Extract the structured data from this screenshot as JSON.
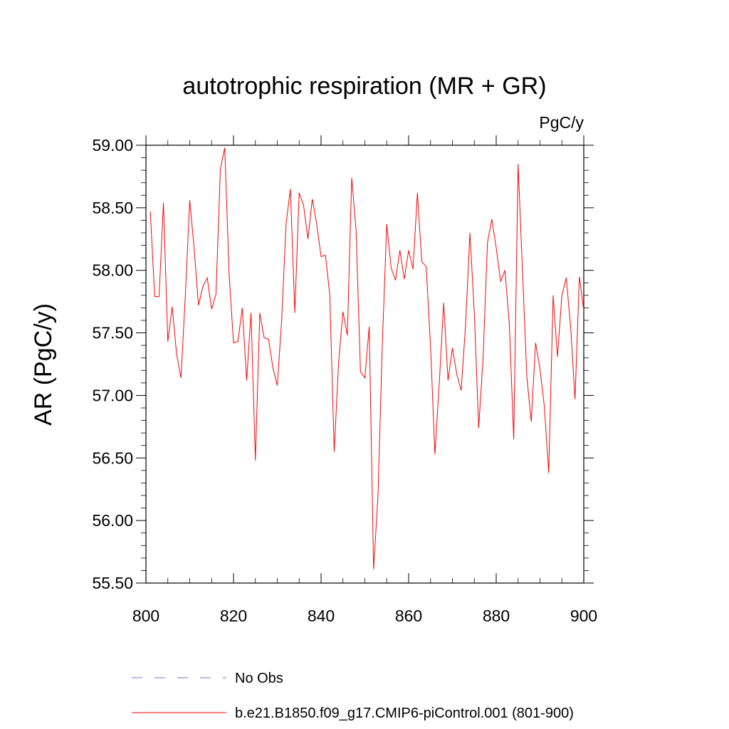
{
  "chart_data": {
    "type": "line",
    "title": "autotrophic respiration (MR + GR)",
    "units_label": "PgC/y",
    "xlabel": "",
    "ylabel": "AR  (PgC/y)",
    "xlim": [
      800,
      900
    ],
    "ylim": [
      55.5,
      59.0
    ],
    "x_ticks": [
      "800",
      "820",
      "840",
      "860",
      "880",
      "900"
    ],
    "y_ticks": [
      "55.50",
      "56.00",
      "56.50",
      "57.00",
      "57.50",
      "58.00",
      "58.50",
      "59.00"
    ],
    "grid": false,
    "legend_position": "bottom",
    "series": [
      {
        "name": "b.e21.B1850.f09_g17.CMIP6-piControl.001 (801-900)",
        "color": "#ff0000",
        "x_start": 801,
        "values": [
          58.47,
          57.79,
          57.79,
          58.54,
          57.43,
          57.71,
          57.33,
          57.14,
          57.8,
          58.56,
          58.18,
          57.72,
          57.87,
          57.94,
          57.69,
          57.81,
          58.81,
          58.98,
          57.97,
          57.42,
          57.43,
          57.7,
          57.12,
          57.66,
          56.48,
          57.66,
          57.46,
          57.45,
          57.22,
          57.08,
          57.6,
          58.37,
          58.65,
          57.66,
          58.62,
          58.52,
          58.25,
          58.57,
          58.37,
          58.11,
          58.12,
          57.8,
          56.55,
          57.26,
          57.67,
          57.48,
          58.74,
          58.32,
          57.19,
          57.14,
          57.55,
          55.61,
          56.2,
          57.42,
          58.37,
          58.02,
          57.92,
          58.16,
          57.93,
          58.16,
          58.01,
          58.62,
          58.07,
          58.03,
          57.4,
          56.53,
          57.1,
          57.74,
          57.12,
          57.38,
          57.17,
          57.04,
          57.56,
          58.3,
          57.66,
          56.74,
          57.3,
          58.22,
          58.41,
          58.18,
          57.91,
          58.0,
          57.57,
          56.65,
          58.85,
          58.0,
          57.15,
          56.79,
          57.42,
          57.21,
          56.91,
          56.38,
          57.8,
          57.31,
          57.8,
          57.94,
          57.55,
          56.97,
          57.95,
          57.68
        ]
      },
      {
        "name": "No Obs",
        "color": "#7b6fd0",
        "dashed": true,
        "values": []
      }
    ]
  }
}
